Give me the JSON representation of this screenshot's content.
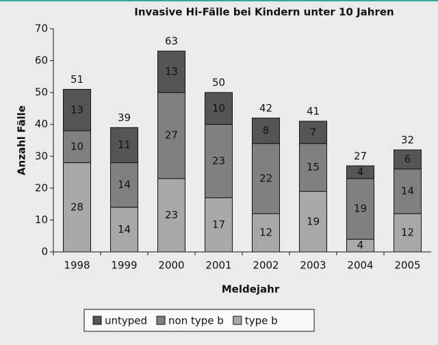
{
  "chart_data": {
    "type": "bar",
    "stacked": true,
    "title": "Invasive Hi-Fälle bei Kindern unter 10 Jahren",
    "x_label": "Meldejahr",
    "y_label": "Anzahl Fälle",
    "categories": [
      "1998",
      "1999",
      "2000",
      "2001",
      "2002",
      "2003",
      "2004",
      "2005"
    ],
    "series": [
      {
        "name": "untyped",
        "color": "#555555",
        "values": [
          13,
          11,
          13,
          10,
          8,
          7,
          4,
          6
        ]
      },
      {
        "name": "non type b",
        "color": "#808080",
        "values": [
          10,
          14,
          27,
          23,
          22,
          15,
          19,
          14
        ]
      },
      {
        "name": "type b",
        "color": "#a8a8a8",
        "values": [
          28,
          14,
          23,
          17,
          12,
          19,
          4,
          12
        ]
      }
    ],
    "totals": [
      51,
      39,
      63,
      50,
      42,
      41,
      27,
      32
    ],
    "ylim": [
      0,
      70
    ],
    "yticks": [
      0,
      10,
      20,
      30,
      40,
      50,
      60,
      70
    ],
    "grid": false
  }
}
